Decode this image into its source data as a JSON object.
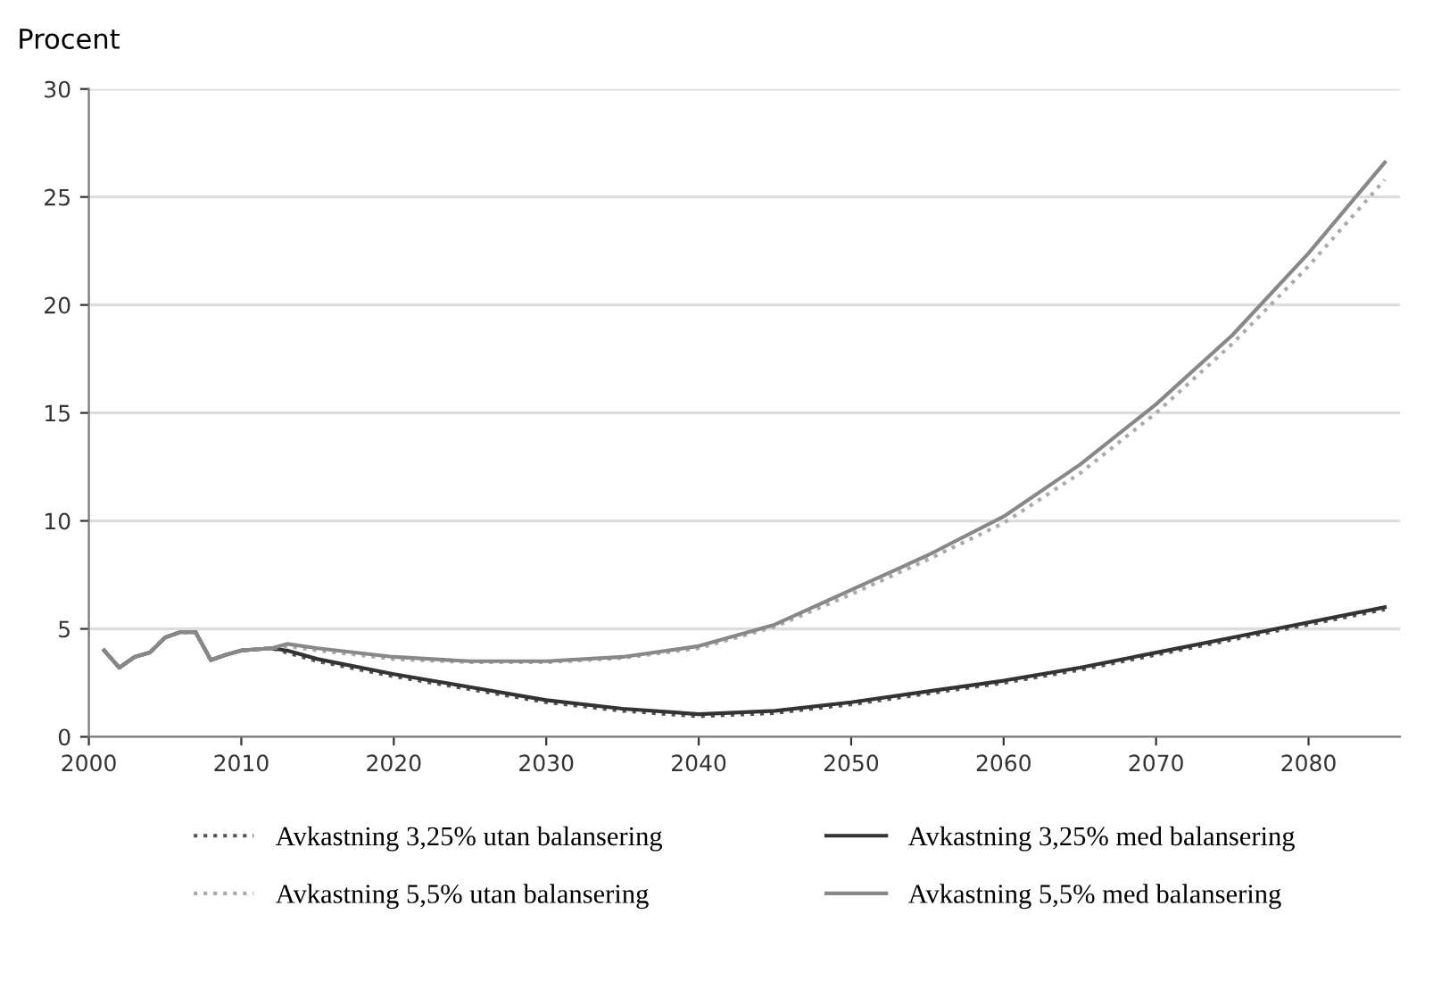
{
  "chart_data": {
    "type": "line",
    "ylabel": "Procent",
    "xlim": [
      2000,
      2086
    ],
    "xticks": [
      2000,
      2010,
      2020,
      2030,
      2040,
      2050,
      2060,
      2070,
      2080
    ],
    "ylim": [
      0,
      30
    ],
    "yticks": [
      0,
      5,
      10,
      15,
      20,
      25,
      30
    ],
    "grid": "y",
    "legend": "bottom",
    "series": [
      {
        "name": "Avkastning 3,25% utan balansering",
        "color": "#555555",
        "line_style": "dotted",
        "x": [
          2001,
          2002,
          2003,
          2004,
          2005,
          2006,
          2007,
          2008,
          2009,
          2010,
          2011,
          2012,
          2013,
          2015,
          2020,
          2025,
          2030,
          2035,
          2040,
          2045,
          2050,
          2055,
          2060,
          2065,
          2070,
          2075,
          2080,
          2085
        ],
        "values": [
          4.0,
          3.2,
          3.7,
          3.9,
          4.6,
          4.85,
          4.85,
          3.55,
          3.8,
          4.0,
          4.05,
          4.1,
          3.9,
          3.5,
          2.8,
          2.2,
          1.6,
          1.2,
          0.95,
          1.1,
          1.5,
          2.0,
          2.5,
          3.1,
          3.8,
          4.5,
          5.2,
          5.9
        ]
      },
      {
        "name": "Avkastning 3,25% med balansering",
        "color": "#333333",
        "line_style": "solid",
        "x": [
          2001,
          2002,
          2003,
          2004,
          2005,
          2006,
          2007,
          2008,
          2009,
          2010,
          2011,
          2012,
          2013,
          2015,
          2020,
          2025,
          2030,
          2035,
          2040,
          2045,
          2050,
          2055,
          2060,
          2065,
          2070,
          2075,
          2080,
          2085
        ],
        "values": [
          4.0,
          3.2,
          3.7,
          3.9,
          4.6,
          4.85,
          4.85,
          3.55,
          3.8,
          4.0,
          4.05,
          4.1,
          4.0,
          3.6,
          2.9,
          2.3,
          1.7,
          1.3,
          1.05,
          1.2,
          1.6,
          2.1,
          2.6,
          3.2,
          3.9,
          4.6,
          5.3,
          6.0
        ]
      },
      {
        "name": "Avkastning 5,5% utan balansering",
        "color": "#aaaaaa",
        "line_style": "dotted",
        "x": [
          2001,
          2002,
          2003,
          2004,
          2005,
          2006,
          2007,
          2008,
          2009,
          2010,
          2011,
          2012,
          2013,
          2015,
          2020,
          2025,
          2030,
          2035,
          2040,
          2045,
          2050,
          2055,
          2060,
          2065,
          2070,
          2075,
          2080,
          2085
        ],
        "values": [
          4.0,
          3.2,
          3.7,
          3.9,
          4.6,
          4.85,
          4.85,
          3.55,
          3.8,
          4.0,
          4.05,
          4.1,
          4.2,
          4.0,
          3.6,
          3.45,
          3.45,
          3.65,
          4.1,
          5.1,
          6.6,
          8.2,
          9.9,
          12.2,
          15.0,
          18.2,
          21.8,
          25.8
        ]
      },
      {
        "name": "Avkastning 5,5% med balansering",
        "color": "#888888",
        "line_style": "solid",
        "x": [
          2001,
          2002,
          2003,
          2004,
          2005,
          2006,
          2007,
          2008,
          2009,
          2010,
          2011,
          2012,
          2013,
          2015,
          2020,
          2025,
          2030,
          2035,
          2040,
          2045,
          2050,
          2055,
          2060,
          2065,
          2070,
          2075,
          2080,
          2085
        ],
        "values": [
          4.0,
          3.2,
          3.7,
          3.9,
          4.6,
          4.85,
          4.85,
          3.55,
          3.8,
          4.0,
          4.05,
          4.1,
          4.3,
          4.1,
          3.7,
          3.5,
          3.5,
          3.7,
          4.2,
          5.2,
          6.8,
          8.4,
          10.2,
          12.6,
          15.4,
          18.6,
          22.4,
          26.6
        ]
      }
    ]
  }
}
